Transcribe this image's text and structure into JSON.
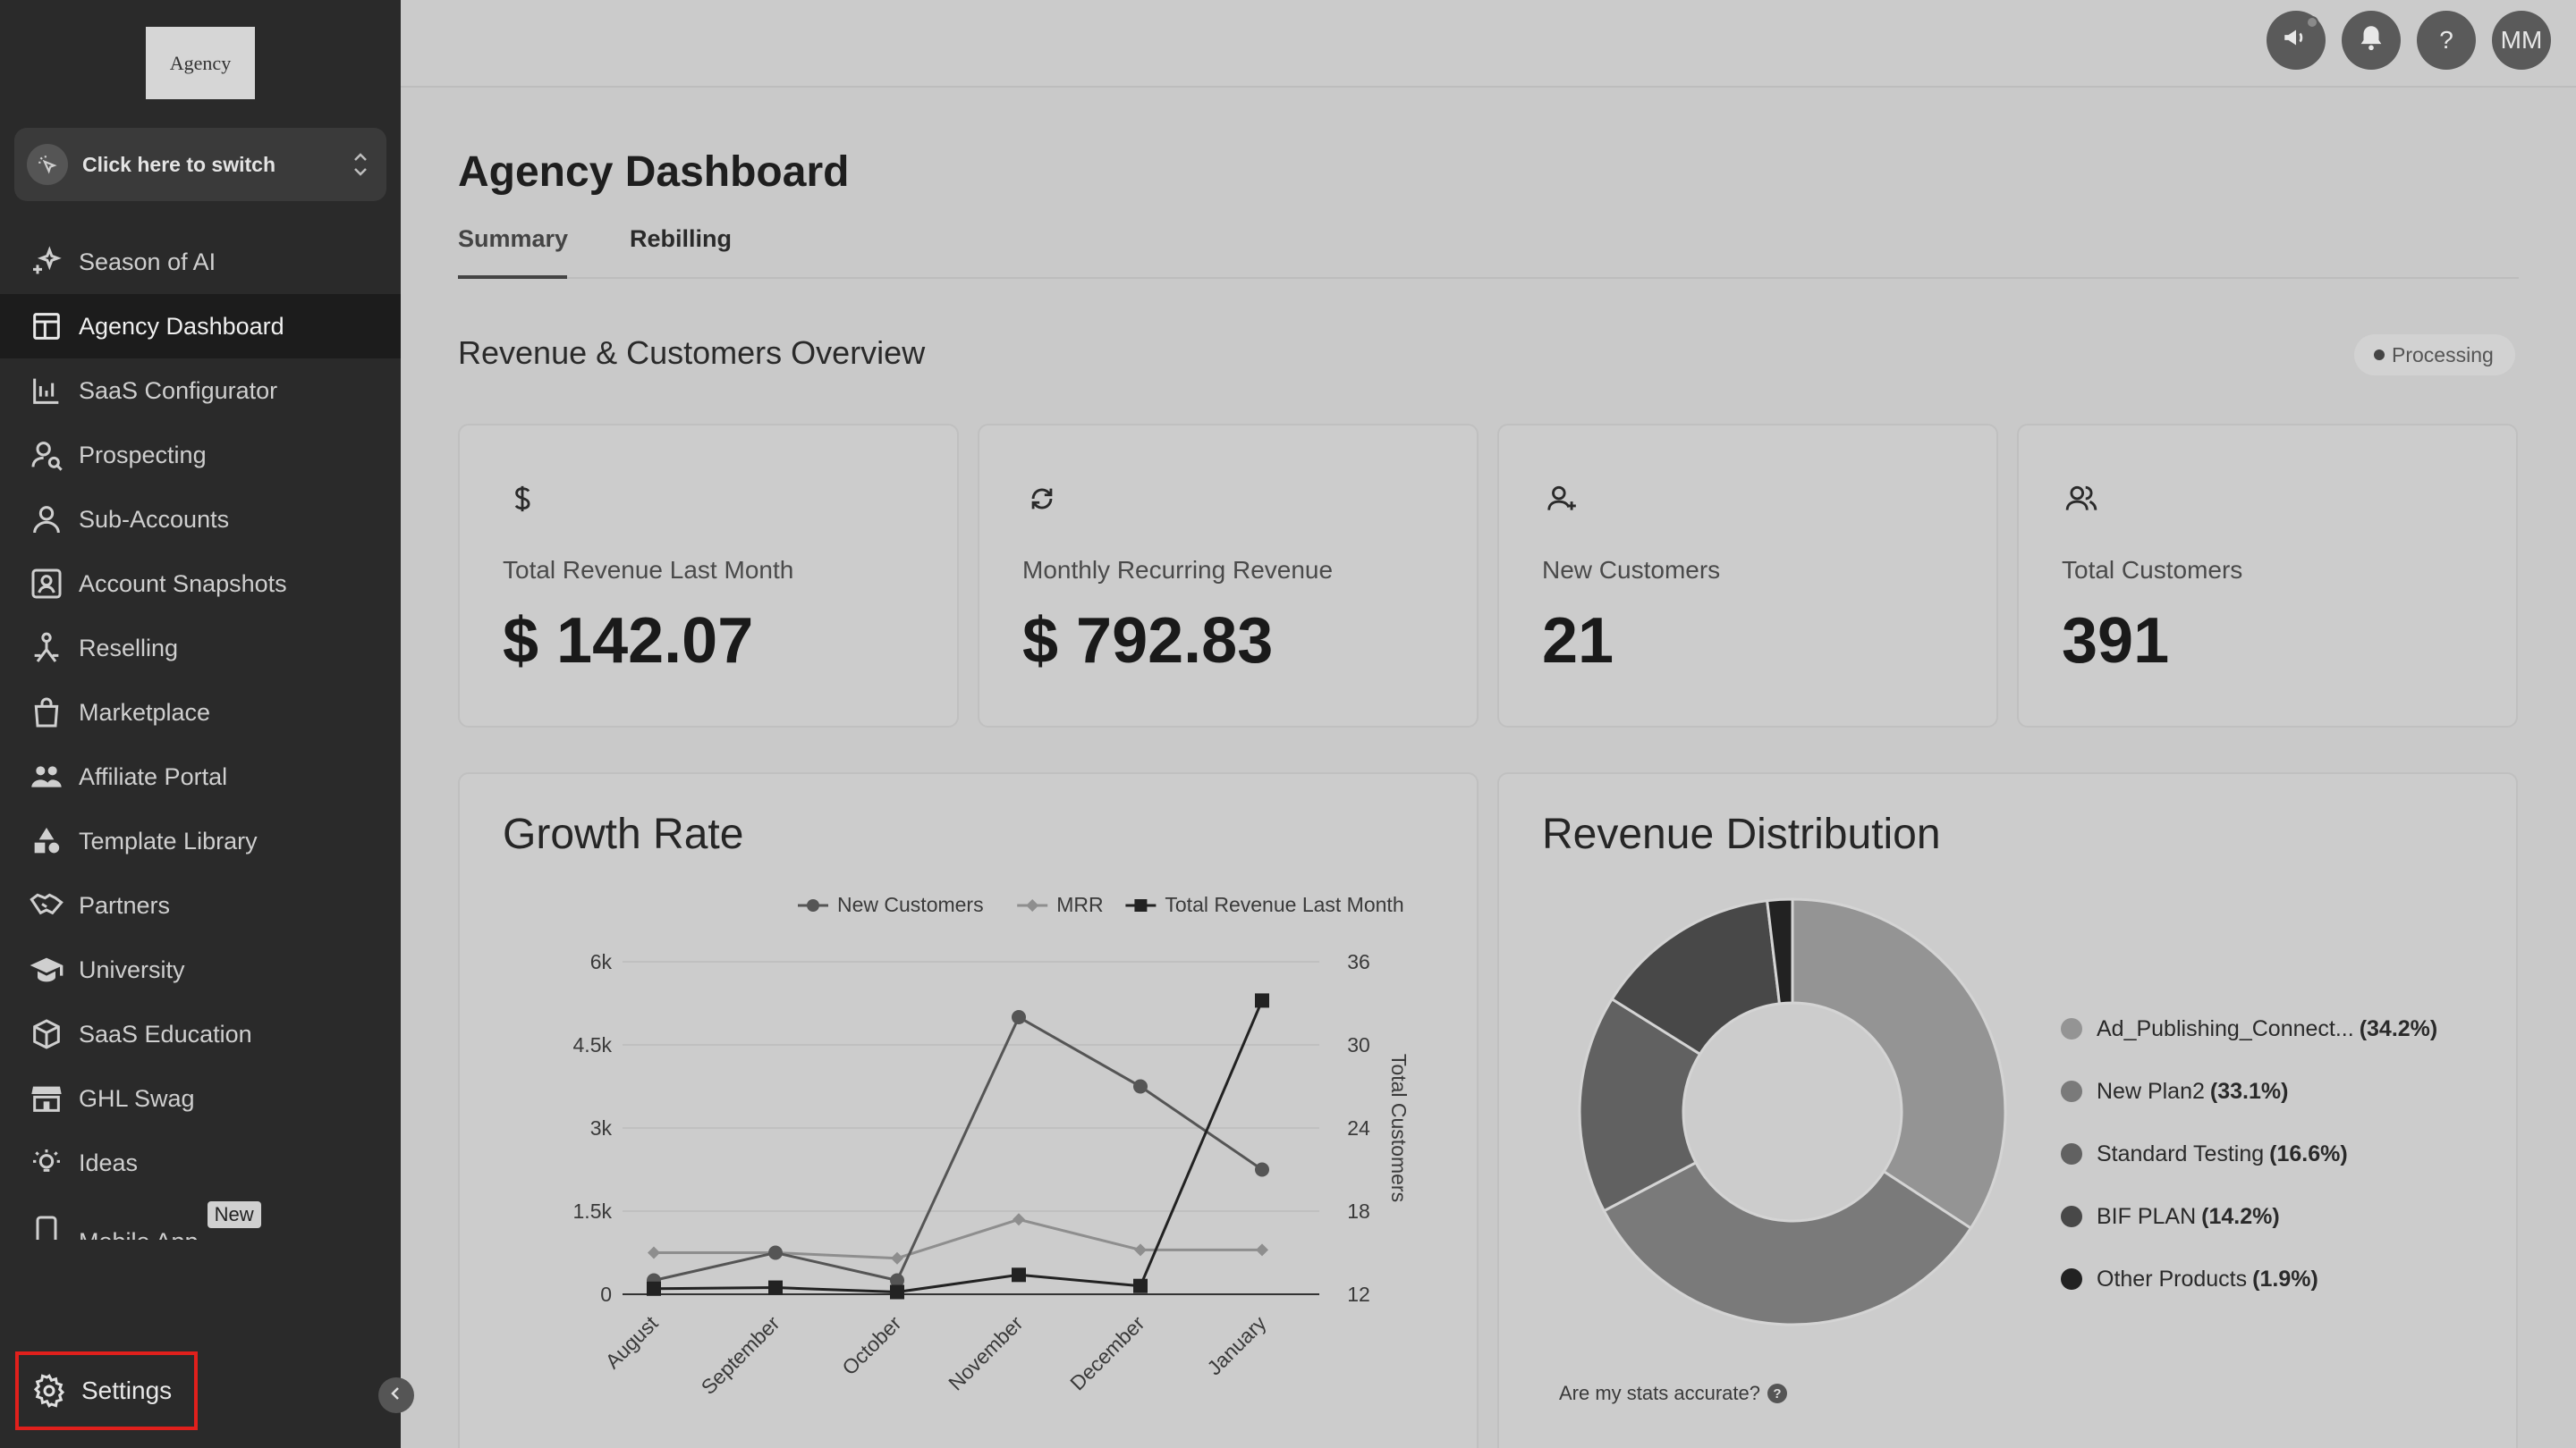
{
  "app": {
    "logo_text": "Agency"
  },
  "switcher": {
    "label": "Click here to switch"
  },
  "sidebar": {
    "items": [
      {
        "label": "Season of AI",
        "icon": "sparkle-icon"
      },
      {
        "label": "Agency Dashboard",
        "icon": "dashboard-icon"
      },
      {
        "label": "SaaS Configurator",
        "icon": "chart-bars-icon"
      },
      {
        "label": "Prospecting",
        "icon": "user-search-icon"
      },
      {
        "label": "Sub-Accounts",
        "icon": "user-icon"
      },
      {
        "label": "Account Snapshots",
        "icon": "snapshot-icon"
      },
      {
        "label": "Reselling",
        "icon": "reselling-icon"
      },
      {
        "label": "Marketplace",
        "icon": "bag-icon"
      },
      {
        "label": "Affiliate Portal",
        "icon": "group-icon"
      },
      {
        "label": "Template Library",
        "icon": "shapes-icon"
      },
      {
        "label": "Partners",
        "icon": "handshake-icon"
      },
      {
        "label": "University",
        "icon": "graduation-cap-icon"
      },
      {
        "label": "SaaS Education",
        "icon": "box-icon"
      },
      {
        "label": "GHL Swag",
        "icon": "store-icon"
      },
      {
        "label": "Ideas",
        "icon": "lightbulb-icon"
      },
      {
        "label": "Mobile App",
        "icon": "phone-icon",
        "badge": "New"
      }
    ],
    "settings_label": "Settings"
  },
  "topbar": {
    "avatar_initials": "MM",
    "help_label": "?"
  },
  "page": {
    "title": "Agency Dashboard",
    "tabs": [
      {
        "label": "Summary"
      },
      {
        "label": "Rebilling"
      }
    ],
    "section_title": "Revenue & Customers Overview",
    "status": "Processing"
  },
  "stats": [
    {
      "label": "Total Revenue Last Month",
      "value": "$ 142.07",
      "icon": "dollar-icon"
    },
    {
      "label": "Monthly Recurring Revenue",
      "value": "$ 792.83",
      "icon": "refresh-icon"
    },
    {
      "label": "New Customers",
      "value": "21",
      "icon": "user-plus-icon"
    },
    {
      "label": "Total Customers",
      "value": "391",
      "icon": "users-icon"
    }
  ],
  "growth": {
    "title": "Growth Rate"
  },
  "distribution": {
    "title": "Revenue Distribution",
    "accuracy_text": "Are my stats accurate?"
  },
  "chart_data": [
    {
      "type": "line",
      "title": "Growth Rate",
      "categories": [
        "August",
        "September",
        "October",
        "November",
        "December",
        "January"
      ],
      "y_left": {
        "ticks": [
          "0",
          "1.5k",
          "3k",
          "4.5k",
          "6k"
        ],
        "range": [
          0,
          6000
        ]
      },
      "y_right": {
        "label": "Total Customers",
        "ticks": [
          "12",
          "18",
          "24",
          "30",
          "36"
        ],
        "range": [
          12,
          36
        ]
      },
      "series": [
        {
          "name": "New Customers",
          "axis": "left",
          "marker": "circle",
          "color": "#555555",
          "values": [
            250,
            750,
            250,
            5000,
            3750,
            2250
          ]
        },
        {
          "name": "MRR",
          "axis": "left",
          "marker": "diamond",
          "color": "#8e8e8e",
          "values": [
            750,
            750,
            650,
            1350,
            800,
            800
          ]
        },
        {
          "name": "Total Revenue Last Month",
          "axis": "left",
          "marker": "square",
          "color": "#222222",
          "values": [
            100,
            120,
            40,
            350,
            150,
            5300
          ]
        }
      ],
      "legend": "top",
      "grid": true
    },
    {
      "type": "pie",
      "title": "Revenue Distribution",
      "donut": true,
      "slices": [
        {
          "label": "Ad_Publishing_Connect...",
          "pct_label": "(34.2%)",
          "value": 34.2,
          "color": "#949494"
        },
        {
          "label": "New Plan2",
          "pct_label": "(33.1%)",
          "value": 33.1,
          "color": "#7a7a7a"
        },
        {
          "label": "Standard Testing",
          "pct_label": "(16.6%)",
          "value": 16.6,
          "color": "#616161"
        },
        {
          "label": "BIF PLAN",
          "pct_label": "(14.2%)",
          "value": 14.2,
          "color": "#484848"
        },
        {
          "label": "Other Products",
          "pct_label": "(1.9%)",
          "value": 1.9,
          "color": "#222222"
        }
      ],
      "legend": "right"
    }
  ]
}
